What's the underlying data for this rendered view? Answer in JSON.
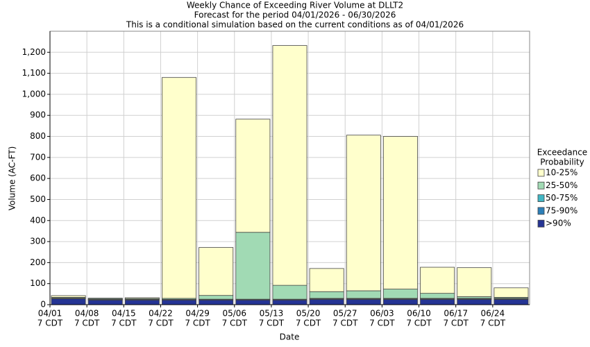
{
  "chart_data": {
    "type": "stacked_bar",
    "title": "Weekly Chance of Exceeding River Volume at DLLT2",
    "subtitle": "Forecast for the period 04/01/2026 - 06/30/2026",
    "note": "This is a conditional simulation based on the current conditions as of 04/01/2026",
    "x_label": "Date",
    "y_label": "Volume (AC-FT)",
    "categories": [
      "04/01",
      "04/08",
      "04/15",
      "04/22",
      "04/29",
      "05/06",
      "05/13",
      "05/20",
      "05/27",
      "06/03",
      "06/10",
      "06/17",
      "06/24"
    ],
    "category_times": [
      "7 CDT",
      "7 CDT",
      "7 CDT",
      "7 CDT",
      "7 CDT",
      "7 CDT",
      "7 CDT",
      "7 CDT",
      "7 CDT",
      "7 CDT",
      "7 CDT",
      "7 CDT",
      "7 CDT"
    ],
    "legend_title": [
      "Exceedance",
      "Probability"
    ],
    "series": [
      {
        "name": "10-25%",
        "color": "#ffffcc",
        "values": [
          8,
          2,
          4,
          1050,
          228,
          538,
          1140,
          110,
          740,
          726,
          124,
          138,
          45
        ]
      },
      {
        "name": "25-50%",
        "color": "#a1dab4",
        "values": [
          4,
          4,
          4,
          5,
          18,
          318,
          66,
          32,
          36,
          44,
          24,
          8,
          5
        ]
      },
      {
        "name": "50-75%",
        "color": "#41b6c4",
        "values": [
          1,
          1,
          1,
          1,
          1,
          1,
          1,
          2,
          2,
          2,
          2,
          2,
          2
        ]
      },
      {
        "name": "75-90%",
        "color": "#2c7fb8",
        "values": [
          2,
          2,
          2,
          2,
          3,
          3,
          3,
          3,
          3,
          3,
          3,
          3,
          3
        ]
      },
      {
        "name": ">90%",
        "color": "#253494",
        "values": [
          28,
          22,
          22,
          22,
          22,
          22,
          22,
          25,
          25,
          25,
          25,
          25,
          25
        ]
      }
    ],
    "ylim": [
      0,
      1300
    ],
    "yticks": [
      0,
      100,
      200,
      300,
      400,
      500,
      600,
      700,
      800,
      900,
      {
        "value": 1000,
        "label": "1,000"
      },
      {
        "value": 1100,
        "label": "1,100"
      },
      {
        "value": 1200,
        "label": "1,200"
      }
    ],
    "grid": true
  }
}
